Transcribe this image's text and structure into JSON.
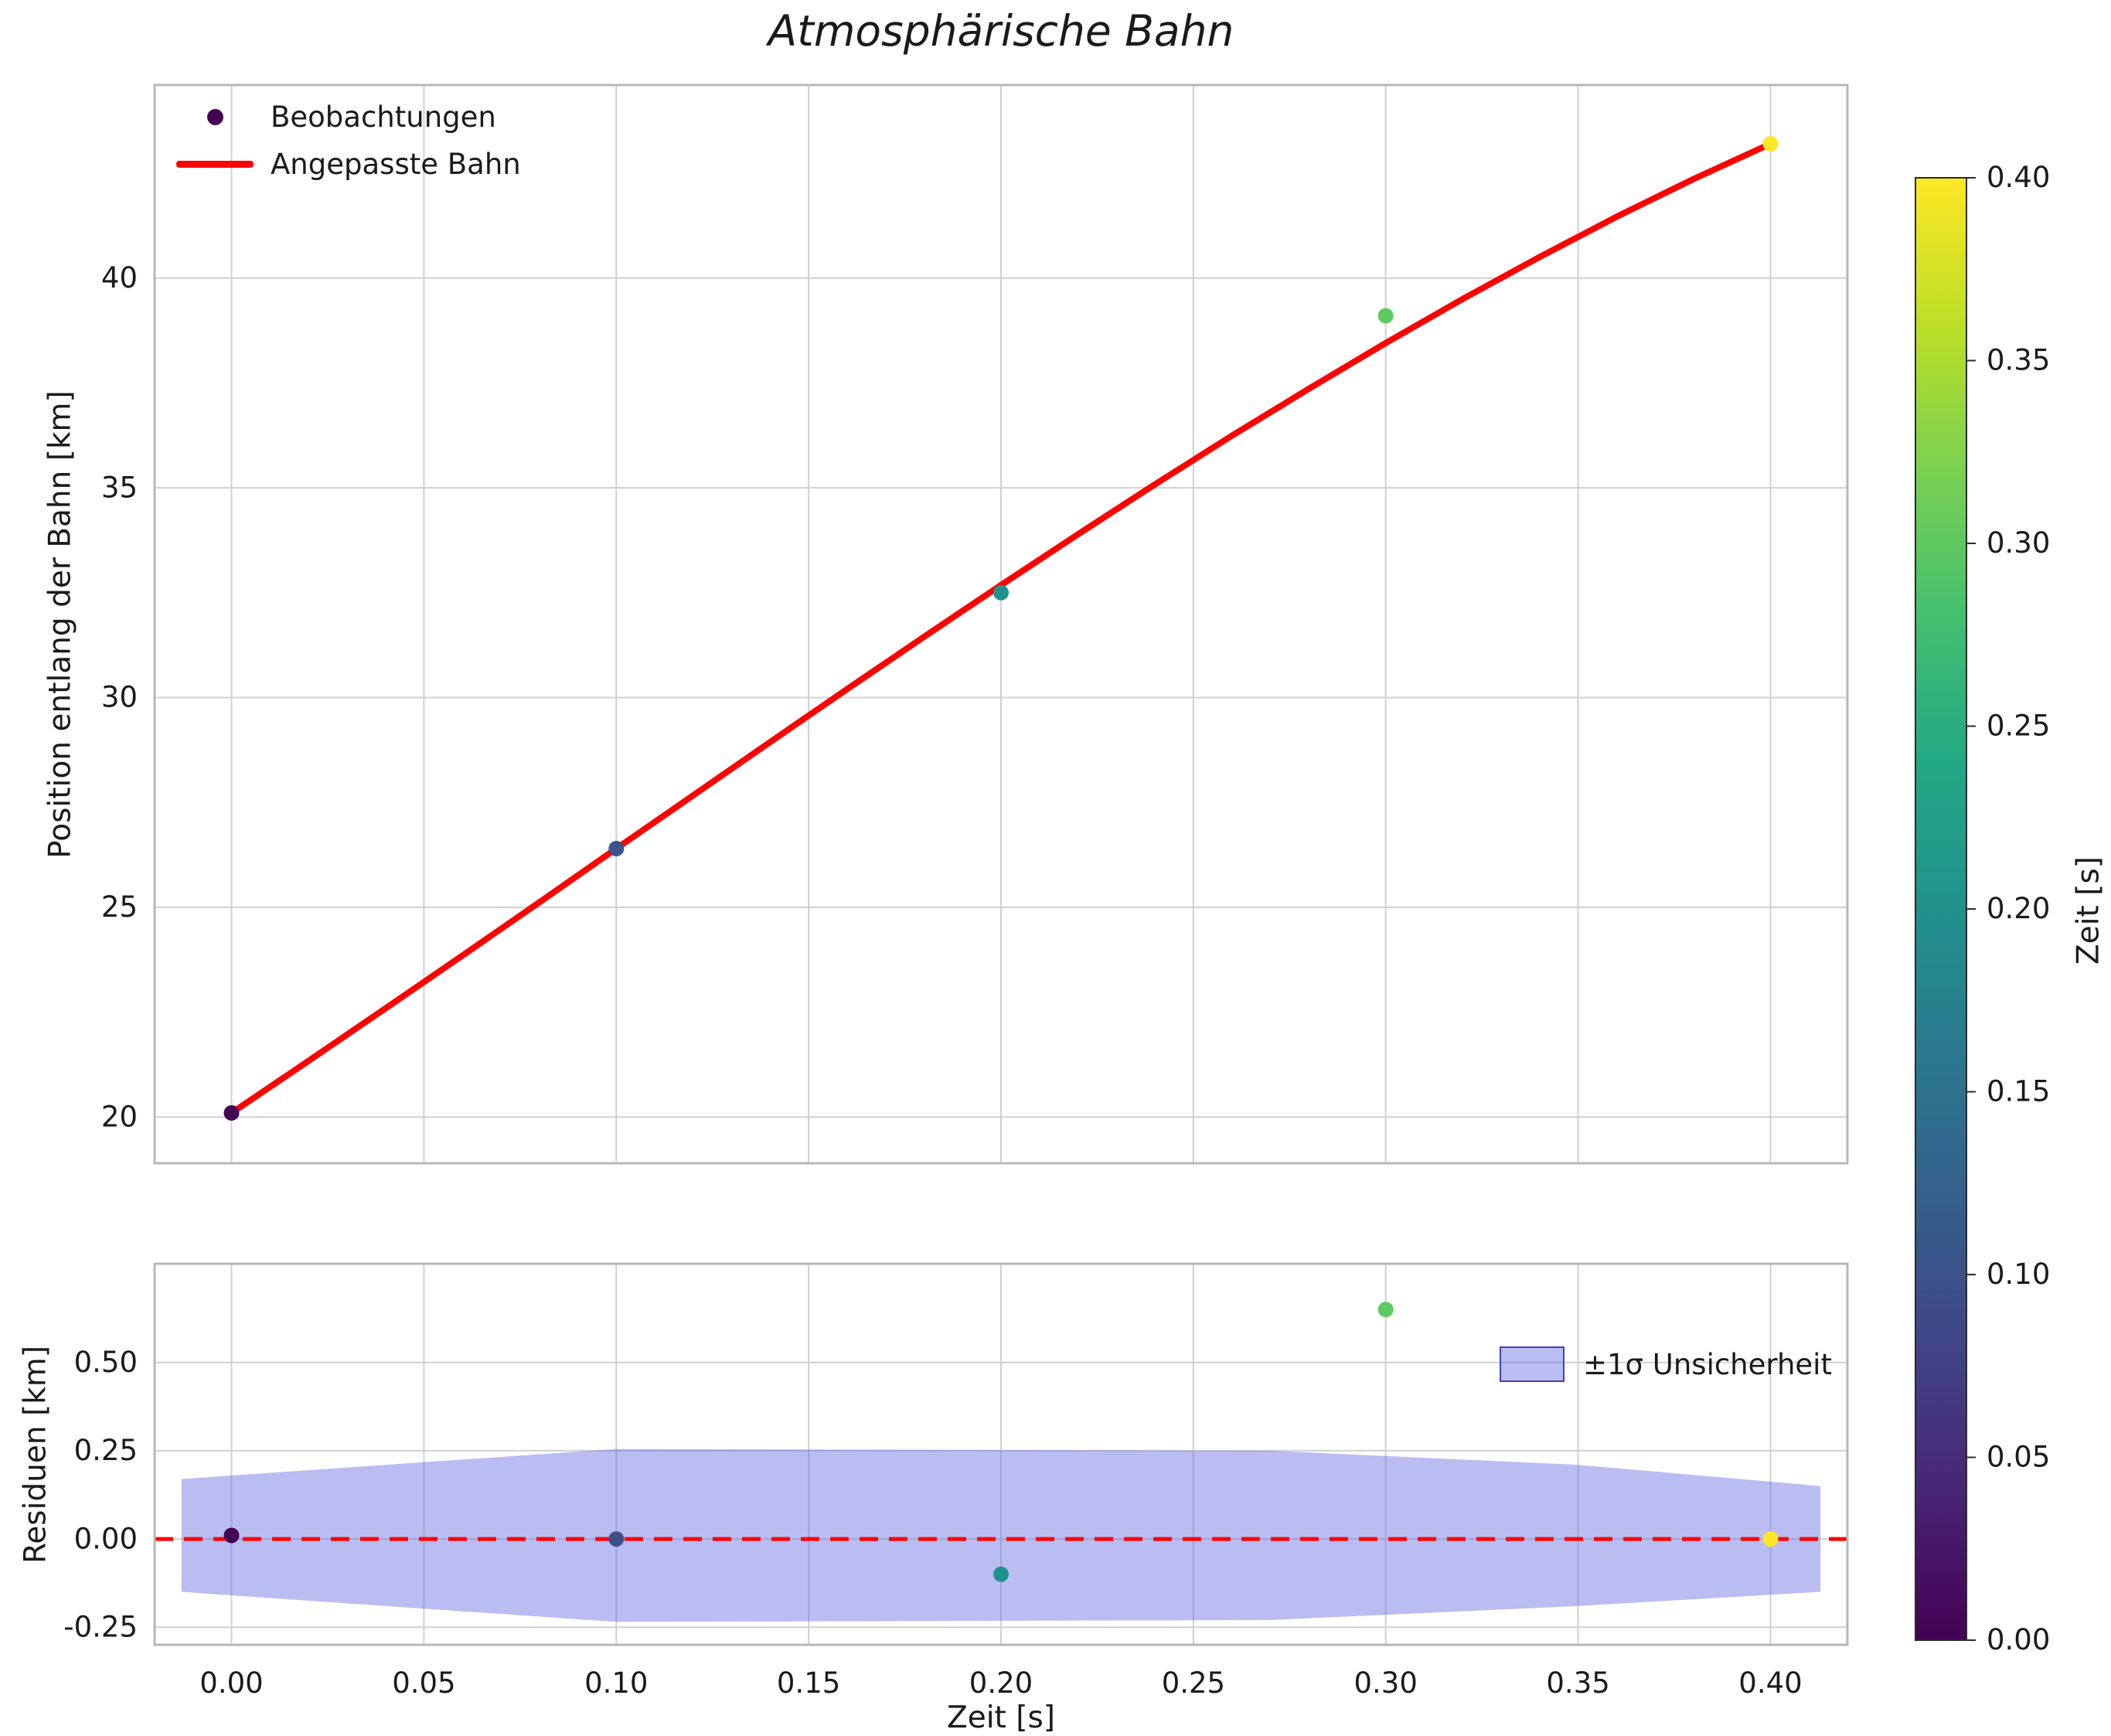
{
  "chart_data": [
    {
      "type": "scatter",
      "panel": "trajectory",
      "title": "Atmosphärische Bahn",
      "ylabel": "Position entlang der Bahn [km]",
      "xlim": [
        -0.02,
        0.42
      ],
      "ylim": [
        18.9,
        44.6
      ],
      "grid": true,
      "xgrid": [
        "0.00",
        "0.05",
        "0.10",
        "0.15",
        "0.20",
        "0.25",
        "0.30",
        "0.35",
        "0.40"
      ],
      "yticks": [
        "20",
        "25",
        "30",
        "35",
        "40"
      ],
      "series": [
        {
          "name": "Beobachtungen",
          "type": "scatter",
          "x": [
            0.0,
            0.1,
            0.2,
            0.3,
            0.4
          ],
          "y": [
            20.1,
            26.4,
            32.5,
            39.1,
            43.2
          ],
          "point_colors": [
            "#440154",
            "#3b528b",
            "#21918c",
            "#5ec962",
            "#fde725"
          ]
        },
        {
          "name": "Angepasste Bahn",
          "type": "line",
          "color": "#ff0000",
          "x": [
            0.0,
            0.02,
            0.04,
            0.06,
            0.08,
            0.1,
            0.12,
            0.14,
            0.16,
            0.18,
            0.2,
            0.22,
            0.24,
            0.26,
            0.28,
            0.3,
            0.32,
            0.34,
            0.36,
            0.38,
            0.4
          ],
          "y": [
            20.1,
            21.34,
            22.59,
            23.85,
            25.12,
            26.4,
            27.67,
            28.94,
            30.2,
            31.45,
            32.68,
            33.89,
            35.08,
            36.24,
            37.36,
            38.45,
            39.5,
            40.5,
            41.46,
            42.36,
            43.2
          ]
        }
      ],
      "colorbar": {
        "label": "Zeit [s]",
        "vmin": 0.0,
        "vmax": 0.4,
        "ticks": [
          "0.00",
          "0.05",
          "0.10",
          "0.15",
          "0.20",
          "0.25",
          "0.30",
          "0.35",
          "0.40"
        ],
        "gradient_stops": [
          "#440154",
          "#482475",
          "#414487",
          "#355f8d",
          "#2a788e",
          "#21918c",
          "#22a884",
          "#44bf70",
          "#7ad151",
          "#bddf26",
          "#fde725"
        ]
      }
    },
    {
      "type": "scatter",
      "panel": "residuals",
      "xlabel": "Zeit [s]",
      "ylabel": "Residuen [km]",
      "xlim": [
        -0.02,
        0.42
      ],
      "ylim": [
        -0.3,
        0.78
      ],
      "grid": true,
      "xticks": [
        "0.00",
        "0.05",
        "0.10",
        "0.15",
        "0.20",
        "0.25",
        "0.30",
        "0.35",
        "0.40"
      ],
      "yticks": [
        "-0.25",
        "0.00",
        "0.25",
        "0.50"
      ],
      "points": {
        "x": [
          0.0,
          0.1,
          0.2,
          0.3,
          0.4
        ],
        "y": [
          0.01,
          0.0,
          -0.1,
          0.65,
          0.0
        ],
        "colors": [
          "#440154",
          "#3b528b",
          "#21918c",
          "#5ec962",
          "#fde725"
        ]
      },
      "zero_line": {
        "color": "#ff0000",
        "style": "dashed",
        "y": 0.0
      },
      "band": {
        "name": "±1σ Unsicherheit",
        "color": "#5a62e0",
        "opacity": 0.42,
        "edge": "#3c43b8",
        "x": [
          -0.013,
          0.04,
          0.1,
          0.27,
          0.35,
          0.413
        ],
        "upper": [
          0.17,
          0.21,
          0.255,
          0.25,
          0.21,
          0.15
        ],
        "lower": [
          -0.15,
          -0.19,
          -0.235,
          -0.23,
          -0.19,
          -0.15
        ]
      }
    }
  ]
}
